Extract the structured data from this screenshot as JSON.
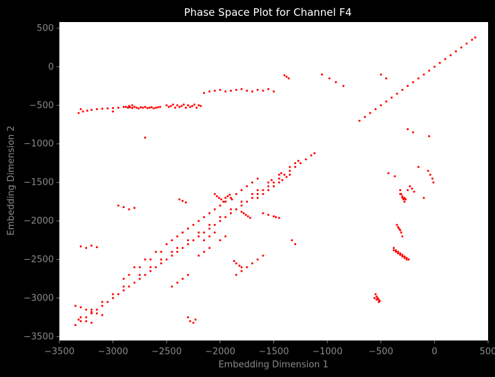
{
  "colors": {
    "background": "#000000",
    "plot_background": "#ffffff",
    "marker": "#ff0000",
    "title_text": "#ffffff",
    "axis_text": "#8a8a8a"
  },
  "chart_data": {
    "type": "scatter",
    "title": "Phase Space Plot for Channel F4",
    "xlabel": "Embedding Dimension 1",
    "ylabel": "Embedding Dimension 2",
    "xlim": [
      -3500,
      500
    ],
    "ylim": [
      -3550,
      580
    ],
    "grid": false,
    "legend": "none",
    "x_ticks": [
      -3500,
      -3000,
      -2500,
      -2000,
      -1500,
      -1000,
      -500,
      0,
      500
    ],
    "y_ticks": [
      -3500,
      -3000,
      -2500,
      -2000,
      -1500,
      -1000,
      -500,
      0,
      500
    ],
    "x_tick_labels": [
      "−3500",
      "−3000",
      "−2500",
      "−2000",
      "−1500",
      "−1000",
      "−500",
      "0",
      "500"
    ],
    "y_tick_labels": [
      "−3500",
      "−3000",
      "−2500",
      "−2000",
      "−1500",
      "−1000",
      "−500",
      "0",
      "500"
    ],
    "series": [
      {
        "color": "#ff0000",
        "marker_size": 1.5,
        "x": [
          -3350,
          -3300,
          -3250,
          -3200,
          -3150,
          -3100,
          -3050,
          -3000,
          -2950,
          -2900,
          -2850,
          -2800,
          -2750,
          -2700,
          -2650,
          -2600,
          -2550,
          -2500,
          -2450,
          -2400,
          -2350,
          -2300,
          -2250,
          -2200,
          -2150,
          -2100,
          -2050,
          -2000,
          -1950,
          -1900,
          -1850,
          -1800,
          -1750,
          -1700,
          -1650,
          -1600,
          -1550,
          -1500,
          -1450,
          -1400,
          -1350,
          -1300,
          -1250,
          -1200,
          -1150,
          -1120,
          -700,
          -650,
          -600,
          -550,
          -500,
          -450,
          -400,
          -350,
          -300,
          -250,
          -200,
          -150,
          -100,
          -50,
          0,
          50,
          100,
          150,
          200,
          250,
          300,
          350,
          380,
          -3320,
          -3200,
          -3100,
          -3000,
          -2900,
          -2750,
          -2650,
          -2550,
          -2450,
          -2400,
          -2300,
          -2200,
          -2100,
          -2000,
          -1900,
          -1800,
          -1700,
          -1650,
          -1550,
          -1520,
          -1450,
          -1430,
          -1350,
          -1300,
          -1270,
          -1650,
          -1600,
          -1550,
          -1500,
          -1450,
          -1420,
          -1380,
          -1350,
          -2150,
          -2100,
          -2050,
          -2400,
          -2350,
          -2300,
          -2200,
          -2100,
          -2000,
          -1950,
          -1900,
          -1850,
          -1800,
          -1750,
          -1700,
          -1650,
          -2800,
          -2700,
          -2600,
          -2500,
          -2450,
          -2350,
          -2250,
          -2150,
          -2050,
          -1950,
          -2900,
          -2850,
          -2750,
          -2650,
          -2550,
          -2200,
          -2150,
          -2100,
          -2000,
          -1950,
          -1850,
          -1800,
          -1750,
          -1700,
          -1650,
          -1600,
          -2450,
          -2400,
          -2350,
          -2300,
          -2300,
          -2280,
          -2250,
          -2230,
          -3350,
          -3300,
          -3250,
          -3200,
          -3150,
          -3100,
          -3300,
          -3250,
          -3200,
          -3300,
          -3250,
          -3200,
          -3150,
          -2880,
          -2860,
          -2840,
          -2820,
          -2800,
          -2780,
          -2760,
          -2740,
          -2720,
          -2700,
          -2680,
          -2660,
          -2640,
          -2620,
          -2600,
          -2580,
          -2560,
          -2500,
          -2480,
          -2460,
          -2440,
          -2420,
          -2400,
          -2380,
          -2360,
          -2340,
          -2320,
          -2300,
          -2280,
          -2260,
          -2240,
          -2220,
          -2200,
          -2180,
          -2050,
          -2030,
          -2010,
          -1990,
          -1970,
          -1950,
          -1930,
          -1910,
          -1890,
          -2150,
          -2100,
          -2050,
          -2000,
          -1950,
          -1900,
          -1850,
          -1800,
          -1750,
          -1700,
          -1650,
          -1600,
          -1550,
          -1500,
          -1850,
          -1800,
          -1780,
          -1760,
          -1740,
          -1720,
          -1600,
          -1550,
          -1500,
          -1480,
          -1450,
          -3320,
          -3280,
          -3240,
          -3200,
          -3150,
          -3100,
          -3050,
          -3000,
          -2950,
          -2900,
          -2850,
          -2820,
          -2950,
          -2900,
          -2850,
          -2800,
          -2380,
          -2350,
          -2320,
          -1870,
          -1850,
          -1820,
          -1800,
          -1400,
          -1380,
          -1360,
          -1050,
          -980,
          -920,
          -850,
          -500,
          -450,
          -320,
          -300,
          -280,
          -270,
          -350,
          -340,
          -330,
          -320,
          -310,
          -300,
          -320,
          -310,
          -300,
          -290,
          -280,
          -380,
          -360,
          -340,
          -320,
          -300,
          -280,
          -260,
          -240,
          -380,
          -360,
          -340,
          -320,
          -300,
          -280,
          -260,
          -550,
          -540,
          -530,
          -520,
          -510,
          -560,
          -540,
          -520,
          -60,
          -40,
          -20,
          -10,
          -250,
          -230,
          -210,
          -190,
          -150,
          -100,
          -50,
          -430,
          -370,
          -250,
          -200,
          -1330,
          -1300,
          -3300,
          -3000,
          -2700
        ],
        "y": [
          -3350,
          -3300,
          -3250,
          -3200,
          -3150,
          -3100,
          -3050,
          -3000,
          -2950,
          -2900,
          -2850,
          -2800,
          -2750,
          -2700,
          -2650,
          -2600,
          -2550,
          -2500,
          -2450,
          -2400,
          -2350,
          -2300,
          -2250,
          -2200,
          -2150,
          -2100,
          -2050,
          -2000,
          -1950,
          -1900,
          -1850,
          -1800,
          -1750,
          -1700,
          -1650,
          -1600,
          -1550,
          -1500,
          -1450,
          -1400,
          -1350,
          -1300,
          -1250,
          -1200,
          -1150,
          -1120,
          -700,
          -650,
          -600,
          -550,
          -500,
          -450,
          -400,
          -350,
          -300,
          -250,
          -200,
          -150,
          -100,
          -50,
          0,
          50,
          100,
          150,
          200,
          250,
          300,
          350,
          380,
          -3280,
          -3150,
          -3050,
          -2950,
          -2850,
          -2700,
          -2600,
          -2500,
          -2400,
          -2350,
          -2250,
          -2150,
          -2050,
          -1950,
          -1850,
          -1750,
          -1650,
          -1600,
          -1500,
          -1470,
          -1400,
          -1380,
          -1300,
          -1250,
          -1220,
          -1700,
          -1650,
          -1600,
          -1550,
          -1500,
          -1470,
          -1430,
          -1400,
          -2250,
          -2200,
          -2150,
          -2200,
          -2150,
          -2100,
          -2000,
          -1900,
          -1800,
          -1750,
          -1700,
          -1650,
          -1600,
          -1550,
          -1500,
          -1450,
          -2600,
          -2500,
          -2400,
          -2300,
          -2250,
          -2150,
          -2050,
          -1950,
          -1850,
          -1750,
          -2750,
          -2700,
          -2600,
          -2500,
          -2400,
          -2450,
          -2400,
          -2350,
          -2250,
          -2200,
          -2700,
          -2650,
          -2600,
          -2550,
          -2500,
          -2450,
          -2850,
          -2800,
          -2750,
          -2700,
          -3250,
          -3300,
          -3320,
          -3280,
          -3100,
          -3120,
          -3150,
          -3180,
          -3200,
          -3220,
          -3250,
          -3300,
          -3320,
          -2330,
          -2350,
          -2320,
          -2340,
          -520,
          -530,
          -525,
          -535,
          -520,
          -530,
          -540,
          -525,
          -530,
          -520,
          -535,
          -530,
          -525,
          -540,
          -530,
          -525,
          -520,
          -500,
          -520,
          -510,
          -490,
          -530,
          -500,
          -520,
          -510,
          -490,
          -530,
          -500,
          -520,
          -510,
          -490,
          -530,
          -500,
          -510,
          -1650,
          -1680,
          -1700,
          -1720,
          -1750,
          -1700,
          -1680,
          -1660,
          -1720,
          -340,
          -320,
          -310,
          -300,
          -320,
          -310,
          -300,
          -290,
          -310,
          -320,
          -300,
          -310,
          -290,
          -320,
          -1850,
          -1880,
          -1900,
          -1920,
          -1940,
          -1960,
          -1900,
          -1920,
          -1940,
          -1950,
          -1960,
          -600,
          -580,
          -570,
          -560,
          -550,
          -545,
          -540,
          -535,
          -530,
          -520,
          -510,
          -500,
          -1800,
          -1820,
          -1850,
          -1830,
          -1720,
          -1740,
          -1760,
          -2520,
          -2550,
          -2580,
          -2600,
          -110,
          -130,
          -150,
          -100,
          -150,
          -200,
          -250,
          -100,
          -150,
          -1650,
          -1680,
          -1700,
          -1720,
          -2050,
          -2080,
          -2100,
          -2120,
          -2150,
          -2200,
          -1600,
          -1650,
          -1700,
          -1720,
          -1750,
          -2350,
          -2380,
          -2400,
          -2420,
          -2440,
          -2460,
          -2480,
          -2500,
          -2380,
          -2400,
          -2420,
          -2440,
          -2460,
          -2480,
          -2500,
          -2950,
          -2980,
          -3000,
          -3020,
          -3040,
          -3000,
          -3020,
          -3050,
          -1350,
          -1400,
          -1450,
          -1500,
          -1600,
          -1550,
          -1580,
          -1620,
          -1300,
          -1700,
          -900,
          -1380,
          -1420,
          -810,
          -850,
          -2250,
          -2300,
          -550,
          -580,
          -920
        ]
      }
    ]
  }
}
